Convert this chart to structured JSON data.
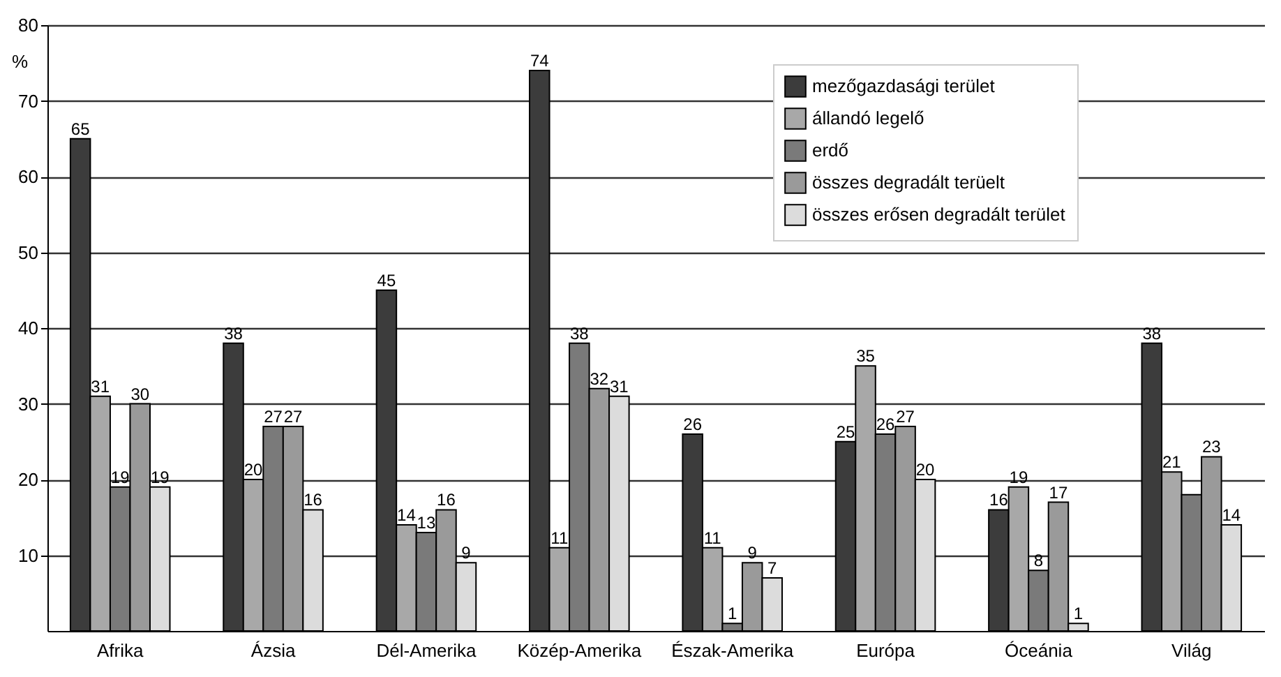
{
  "chart_data": {
    "type": "bar",
    "ylabel": "%",
    "categories": [
      "Afrika",
      "Ázsia",
      "Dél-Amerika",
      "Közép-Amerika",
      "Észak-Amerika",
      "Európa",
      "Óceánia",
      "Világ"
    ],
    "series": [
      {
        "name": "mezőgazdasági terület",
        "color": "#3c3c3c",
        "values": [
          65,
          38,
          45,
          74,
          26,
          25,
          16,
          38
        ],
        "value_labels": [
          "65",
          "38",
          "45",
          "74",
          "26",
          "25",
          "16",
          "38"
        ]
      },
      {
        "name": "állandó legelő",
        "color": "#a8a8a8",
        "values": [
          31,
          20,
          14,
          11,
          11,
          35,
          19,
          21
        ],
        "value_labels": [
          "31",
          "20",
          "14",
          "11",
          "11",
          "35",
          "19",
          "21"
        ]
      },
      {
        "name": "erdő",
        "color": "#7a7a7a",
        "values": [
          19,
          27,
          13,
          38,
          1,
          26,
          8,
          18
        ],
        "value_labels": [
          "19",
          "27",
          "13",
          "38",
          "1",
          "26",
          "8",
          null
        ]
      },
      {
        "name": "összes degradált terüelt",
        "color": "#9a9a9a",
        "values": [
          30,
          27,
          16,
          32,
          9,
          27,
          17,
          23
        ],
        "value_labels": [
          "30",
          "27",
          "16",
          "32",
          "9",
          "27",
          "17",
          "23"
        ]
      },
      {
        "name": "összes erősen degradált terület",
        "color": "#dcdcdc",
        "values": [
          19,
          16,
          9,
          31,
          7,
          20,
          1,
          14
        ],
        "value_labels": [
          "19",
          "16",
          "9",
          "31",
          "7",
          "20",
          "1",
          "14"
        ]
      }
    ],
    "ylim": [
      0,
      80
    ],
    "yticks": [
      10,
      20,
      30,
      40,
      50,
      60,
      70,
      80
    ],
    "grid": "y",
    "legend": "top right"
  }
}
